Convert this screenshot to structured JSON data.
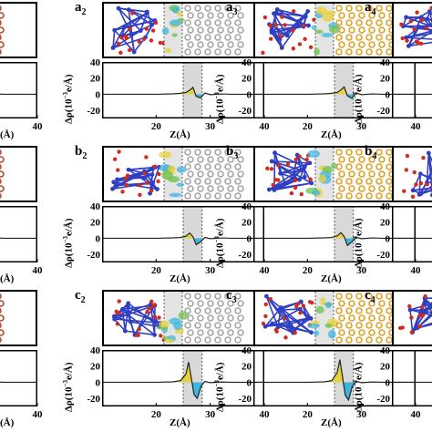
{
  "figure": {
    "ylabel_parts": {
      "base": "Δρ(10",
      "exp": "−3",
      "unit": "e/Å)"
    },
    "xlabel": "Z(Å)",
    "xlabel_partial": "(Å)",
    "x_ticks": [
      "20",
      "30",
      "40"
    ],
    "y_ticks": [
      "40",
      "20",
      "0",
      "-20"
    ],
    "panels": [
      {
        "id": "a1",
        "label_letter": "",
        "label_sub": ""
      },
      {
        "id": "a2",
        "label_letter": "a",
        "label_sub": "2"
      },
      {
        "id": "a3",
        "label_letter": "a",
        "label_sub": "3"
      },
      {
        "id": "a4",
        "label_letter": "a",
        "label_sub": "4"
      },
      {
        "id": "b1",
        "label_letter": "",
        "label_sub": ""
      },
      {
        "id": "b2",
        "label_letter": "b",
        "label_sub": "2"
      },
      {
        "id": "b3",
        "label_letter": "b",
        "label_sub": "3"
      },
      {
        "id": "b4",
        "label_letter": "b",
        "label_sub": "4"
      },
      {
        "id": "c1",
        "label_letter": "",
        "label_sub": ""
      },
      {
        "id": "c2",
        "label_letter": "c",
        "label_sub": "2"
      },
      {
        "id": "c3",
        "label_letter": "c",
        "label_sub": "3"
      },
      {
        "id": "c4",
        "label_letter": "c",
        "label_sub": "4"
      }
    ],
    "colors": {
      "frame": "#000000",
      "interface_band": "#d9d9d9",
      "accumulation": "#e8d23a",
      "depletion": "#3fb6e0",
      "curve": "#222222",
      "oxygen": "#d42a1e",
      "metal_framework": "#2f3fc2",
      "substrate_ag": "#a7a7a7",
      "substrate_au": "#e0a32a",
      "substrate_cu": "#b84a2c",
      "isosurface": "#69c24a"
    }
  },
  "chart_data": [
    {
      "type": "line",
      "panel": "a2",
      "xlabel": "Z(Å)",
      "ylabel": "Δρ(10^-3 e/Å)",
      "xlim": [
        10,
        40
      ],
      "ylim": [
        -30,
        40
      ],
      "interface_band": [
        25,
        28.5
      ],
      "x": [
        10,
        20,
        23,
        24.5,
        25.5,
        26.2,
        26.8,
        27.4,
        28.2,
        29,
        30,
        32,
        34,
        40
      ],
      "y": [
        0,
        0,
        0.5,
        1.2,
        2.2,
        5.0,
        8.5,
        -2.5,
        -4.5,
        1.5,
        -0.5,
        0.4,
        0,
        0
      ]
    },
    {
      "type": "line",
      "panel": "a3",
      "xlabel": "Z(Å)",
      "ylabel": "Δρ(10^-3 e/Å)",
      "xlim": [
        10,
        40
      ],
      "ylim": [
        -30,
        40
      ],
      "interface_band": [
        25,
        28.5
      ],
      "x": [
        10,
        20,
        23,
        24.5,
        25.5,
        26.2,
        26.8,
        27.4,
        28.2,
        29,
        30,
        32,
        34,
        40
      ],
      "y": [
        0,
        0,
        0.5,
        1.2,
        2.2,
        5.5,
        9.0,
        -2.0,
        -5.0,
        1.5,
        -0.5,
        0.4,
        0,
        0
      ]
    },
    {
      "type": "line",
      "panel": "b2",
      "xlabel": "Z(Å)",
      "ylabel": "Δρ(10^-3 e/Å)",
      "xlim": [
        10,
        40
      ],
      "ylim": [
        -30,
        40
      ],
      "interface_band": [
        25,
        28.5
      ],
      "x": [
        10,
        20,
        23,
        24.5,
        25.5,
        26.2,
        26.8,
        27.4,
        28.2,
        29,
        30,
        32,
        34,
        40
      ],
      "y": [
        0,
        0,
        0.5,
        1.0,
        2.5,
        6.5,
        2.0,
        -8.0,
        -4.5,
        1.0,
        -0.5,
        0.4,
        0,
        0
      ]
    },
    {
      "type": "line",
      "panel": "b3",
      "xlabel": "Z(Å)",
      "ylabel": "Δρ(10^-3 e/Å)",
      "xlim": [
        10,
        40
      ],
      "ylim": [
        -30,
        40
      ],
      "interface_band": [
        25,
        28.5
      ],
      "x": [
        10,
        20,
        23,
        24.5,
        25.5,
        26.2,
        26.8,
        27.4,
        28.2,
        29,
        30,
        32,
        34,
        40
      ],
      "y": [
        0,
        0,
        0.5,
        1.0,
        3.0,
        7.0,
        2.0,
        -9.0,
        -4.5,
        1.0,
        -0.5,
        0.4,
        0,
        0
      ]
    },
    {
      "type": "line",
      "panel": "c2",
      "xlabel": "Z(Å)",
      "ylabel": "Δρ(10^-3 e/Å)",
      "xlim": [
        10,
        40
      ],
      "ylim": [
        -30,
        40
      ],
      "interface_band": [
        25,
        28.5
      ],
      "x": [
        10,
        20,
        23,
        24.5,
        25.5,
        26.0,
        26.5,
        27.0,
        27.6,
        28.3,
        29,
        30,
        32,
        34,
        40
      ],
      "y": [
        0,
        0,
        0.5,
        2.0,
        10.0,
        25.0,
        5.0,
        -15.0,
        -20.0,
        -5.0,
        1.0,
        -0.5,
        0.3,
        0,
        0
      ]
    },
    {
      "type": "line",
      "panel": "c3",
      "xlabel": "Z(Å)",
      "ylabel": "Δρ(10^-3 e/Å)",
      "xlim": [
        10,
        40
      ],
      "ylim": [
        -30,
        40
      ],
      "interface_band": [
        25,
        28.5
      ],
      "x": [
        10,
        20,
        23,
        24.5,
        25.5,
        26.0,
        26.5,
        27.0,
        27.6,
        28.3,
        29,
        30,
        32,
        34,
        40
      ],
      "y": [
        0,
        0,
        0.5,
        2.0,
        12.0,
        28.0,
        6.0,
        -16.0,
        -22.0,
        -5.0,
        1.0,
        -0.5,
        0.3,
        0,
        0
      ]
    }
  ]
}
